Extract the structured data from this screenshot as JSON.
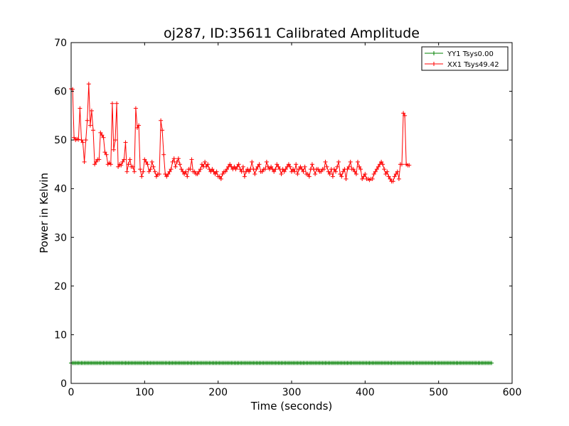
{
  "chart_data": {
    "type": "line",
    "title": "oj287, ID:35611 Calibrated Amplitude",
    "xlabel": "Time (seconds)",
    "ylabel": "Power in Kelvin",
    "xlim": [
      0,
      600
    ],
    "ylim": [
      0,
      70
    ],
    "xticks": [
      0,
      100,
      200,
      300,
      400,
      500,
      600
    ],
    "yticks": [
      0,
      10,
      20,
      30,
      40,
      50,
      60,
      70
    ],
    "grid": false,
    "legend_position": "top-right",
    "series": [
      {
        "name": "YY1 Tsys0.00",
        "color": "#008000",
        "marker": "+",
        "sample_interval": 2,
        "y": [
          4.2,
          4.2,
          4.2,
          4.2,
          4.2,
          4.2,
          4.2,
          4.2,
          4.2,
          4.2,
          4.2,
          4.2,
          4.2,
          4.2,
          4.2,
          4.2,
          4.2,
          4.2,
          4.2,
          4.2,
          4.2,
          4.2,
          4.2,
          4.2,
          4.2,
          4.2,
          4.2,
          4.2,
          4.2,
          4.2,
          4.2,
          4.2,
          4.2,
          4.2,
          4.2,
          4.2,
          4.2,
          4.2,
          4.2,
          4.2,
          4.2,
          4.2,
          4.2,
          4.2,
          4.2,
          4.2,
          4.2,
          4.2,
          4.2,
          4.2,
          4.2,
          4.2,
          4.2,
          4.2,
          4.2,
          4.2,
          4.2,
          4.2,
          4.2,
          4.2,
          4.2,
          4.2,
          4.2,
          4.2,
          4.2,
          4.2,
          4.2,
          4.2,
          4.2,
          4.2,
          4.2,
          4.2,
          4.2,
          4.2,
          4.2,
          4.2,
          4.2,
          4.2,
          4.2,
          4.2,
          4.2,
          4.2,
          4.2,
          4.2,
          4.2,
          4.2,
          4.2,
          4.2,
          4.2,
          4.2,
          4.2,
          4.2,
          4.2,
          4.2,
          4.2,
          4.2,
          4.2,
          4.2,
          4.2,
          4.2,
          4.2,
          4.2,
          4.2,
          4.2,
          4.2,
          4.2,
          4.2,
          4.2,
          4.2,
          4.2,
          4.2,
          4.2,
          4.2,
          4.2,
          4.2,
          4.2,
          4.2,
          4.2,
          4.2,
          4.2,
          4.2,
          4.2,
          4.2,
          4.2,
          4.2,
          4.2,
          4.2,
          4.2,
          4.2,
          4.2,
          4.2,
          4.2,
          4.2,
          4.2,
          4.2,
          4.2,
          4.2,
          4.2,
          4.2,
          4.2,
          4.2,
          4.2,
          4.2,
          4.2,
          4.2,
          4.2,
          4.2,
          4.2,
          4.2,
          4.2,
          4.2,
          4.2,
          4.2,
          4.2,
          4.2,
          4.2,
          4.2,
          4.2,
          4.2,
          4.2,
          4.2,
          4.2,
          4.2,
          4.2,
          4.2,
          4.2,
          4.2,
          4.2,
          4.2,
          4.2,
          4.2,
          4.2,
          4.2,
          4.2,
          4.2,
          4.2,
          4.2,
          4.2,
          4.2,
          4.2,
          4.2,
          4.2,
          4.2,
          4.2,
          4.2,
          4.2,
          4.2,
          4.2,
          4.2,
          4.2,
          4.2,
          4.2,
          4.2,
          4.2,
          4.2,
          4.2,
          4.2,
          4.2,
          4.2,
          4.2,
          4.2,
          4.2,
          4.2,
          4.2,
          4.2,
          4.2,
          4.2,
          4.2,
          4.2,
          4.2,
          4.2,
          4.2,
          4.2,
          4.2,
          4.2,
          4.2,
          4.2,
          4.2,
          4.2,
          4.2,
          4.2,
          4.2,
          4.2,
          4.2,
          4.2,
          4.2,
          4.2,
          4.2,
          4.2,
          4.2,
          4.2,
          4.2,
          4.2,
          4.2,
          4.2,
          4.2,
          4.2,
          4.2,
          4.2,
          4.2,
          4.2,
          4.2,
          4.2,
          4.2,
          4.2,
          4.2,
          4.2,
          4.2,
          4.2,
          4.2,
          4.2,
          4.2,
          4.2,
          4.2,
          4.2,
          4.2,
          4.2,
          4.2,
          4.2,
          4.2,
          4.2,
          4.2,
          4.2,
          4.2,
          4.2,
          4.2,
          4.2,
          4.2,
          4.2,
          4.2,
          4.2,
          4.2,
          4.2,
          4.2,
          4.2,
          4.2,
          4.2,
          4.2,
          4.2,
          4.2,
          4.2,
          4.2,
          4.2,
          4.2,
          4.2,
          4.2,
          4.2
        ]
      },
      {
        "name": "XX1 Tsys49.42",
        "color": "#ff0000",
        "marker": "+",
        "sample_interval": 2,
        "y": [
          60.5,
          60.4,
          50.5,
          50.0,
          50.2,
          50.1,
          56.5,
          50.0,
          49.5,
          45.5,
          50.0,
          54.0,
          61.5,
          53.0,
          56.0,
          52.0,
          45.0,
          45.5,
          46.0,
          46.0,
          51.5,
          51.0,
          50.5,
          47.5,
          47.0,
          45.0,
          45.3,
          45.0,
          57.5,
          48.0,
          50.0,
          57.5,
          44.5,
          45.0,
          44.8,
          45.5,
          46.0,
          49.5,
          43.5,
          45.0,
          46.0,
          44.5,
          44.5,
          43.5,
          56.5,
          52.5,
          53.0,
          44.0,
          42.5,
          43.5,
          46.0,
          45.5,
          45.0,
          43.5,
          44.0,
          45.5,
          44.5,
          43.5,
          42.5,
          43.0,
          43.0,
          54.0,
          52.0,
          47.0,
          43.0,
          42.5,
          43.0,
          43.5,
          44.0,
          45.5,
          46.2,
          44.5,
          45.5,
          46.2,
          45.0,
          44.0,
          43.5,
          43.0,
          43.5,
          42.5,
          44.0,
          44.0,
          46.0,
          43.5,
          43.5,
          43.0,
          43.0,
          43.5,
          44.0,
          45.0,
          44.5,
          45.5,
          44.5,
          45.0,
          44.0,
          43.5,
          44.0,
          43.5,
          43.0,
          43.5,
          42.5,
          42.5,
          42.0,
          43.0,
          43.5,
          43.5,
          44.0,
          44.5,
          45.0,
          44.5,
          44.0,
          44.5,
          44.0,
          44.5,
          45.0,
          44.0,
          43.5,
          44.5,
          42.5,
          43.5,
          44.0,
          43.5,
          44.0,
          45.5,
          44.0,
          43.0,
          44.0,
          44.5,
          45.0,
          43.5,
          43.5,
          44.0,
          44.0,
          45.5,
          44.5,
          44.0,
          44.5,
          44.0,
          43.5,
          44.0,
          45.0,
          44.5,
          44.0,
          43.0,
          44.0,
          43.5,
          44.0,
          44.5,
          45.0,
          44.5,
          43.5,
          44.0,
          43.5,
          45.0,
          43.0,
          44.0,
          44.5,
          44.0,
          43.5,
          44.5,
          43.0,
          43.0,
          42.5,
          44.0,
          45.0,
          44.0,
          43.0,
          44.0,
          44.0,
          43.5,
          43.5,
          44.0,
          44.0,
          45.5,
          44.5,
          43.5,
          43.0,
          44.0,
          42.5,
          44.0,
          43.5,
          44.5,
          45.5,
          43.0,
          42.5,
          43.5,
          44.0,
          42.0,
          44.0,
          44.5,
          45.5,
          44.0,
          44.0,
          43.5,
          43.0,
          45.5,
          44.5,
          44.0,
          42.0,
          42.5,
          43.0,
          42.0,
          42.0,
          41.8,
          42.0,
          42.0,
          43.0,
          43.5,
          44.0,
          44.5,
          45.0,
          45.5,
          45.0,
          44.0,
          43.0,
          43.5,
          42.5,
          42.0,
          41.5,
          41.5,
          42.5,
          43.0,
          43.5,
          42.0,
          45.0,
          45.0,
          55.5,
          55.0,
          45.0,
          44.8,
          44.8
        ]
      }
    ]
  }
}
